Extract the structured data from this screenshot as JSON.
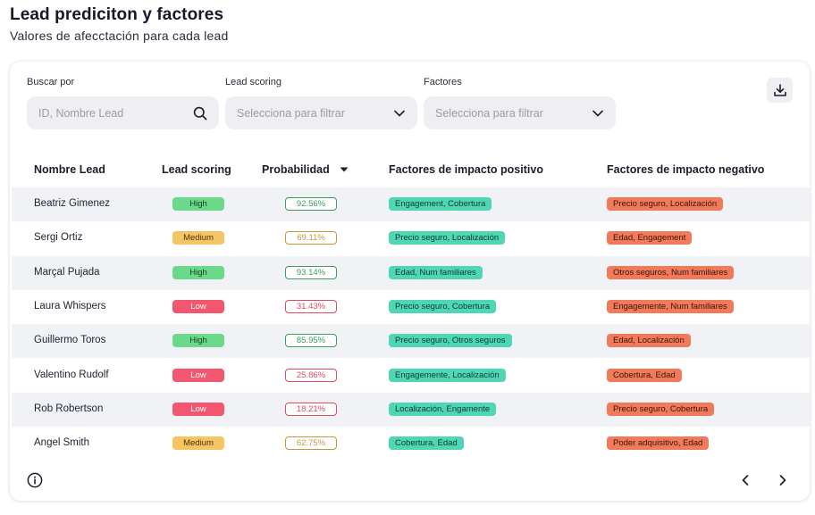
{
  "header": {
    "title": "Lead prediciton y factores",
    "subtitle": "Valores de afecctación para cada lead"
  },
  "filters": {
    "search_label": "Buscar por",
    "search_placeholder": "ID, Nombre Lead",
    "scoring_label": "Lead scoring",
    "scoring_placeholder": "Selecciona para filtrar",
    "factors_label": "Factores",
    "factors_placeholder": "Selecciona para filtrar"
  },
  "table": {
    "columns": {
      "name": "Nombre Lead",
      "scoring": "Lead scoring",
      "probability": "Probabilidad",
      "positive": "Factores de impacto positivo",
      "negative": "Factores de impacto negativo"
    },
    "rows": [
      {
        "name": "Beatriz Gimenez",
        "scoring": "High",
        "probability": "92.56%",
        "positive": "Engagement, Cobertura",
        "negative": "Precio seguro, Localización"
      },
      {
        "name": "Sergi Ortiz",
        "scoring": "Medium",
        "probability": "69.11%",
        "positive": "Precio seguro, Localización",
        "negative": "Edad, Engagement"
      },
      {
        "name": "Marçal Pujada",
        "scoring": "High",
        "probability": "93.14%",
        "positive": "Edad, Num familiares",
        "negative": "Otros seguros, Num familiares"
      },
      {
        "name": "Laura Whispers",
        "scoring": "Low",
        "probability": "31.43%",
        "positive": "Precio seguro, Cobertura",
        "negative": "Engagemente, Num familiares"
      },
      {
        "name": "Guillermo Toros",
        "scoring": "High",
        "probability": "85.95%",
        "positive": "Precio seguro, Otros seguros",
        "negative": "Edad, Localización"
      },
      {
        "name": "Valentino Rudolf",
        "scoring": "Low",
        "probability": "25.86%",
        "positive": "Engagemente, Localización",
        "negative": "Cobertura, Edad"
      },
      {
        "name": "Rob Robertson",
        "scoring": "Low",
        "probability": "18.21%",
        "positive": "Localización, Engamente",
        "negative": "Precio seguro, Cobertura"
      },
      {
        "name": "Angel Smith",
        "scoring": "Medium",
        "probability": "62.75%",
        "positive": "Cobertura, Edad",
        "negative": "Poder adquisitivo, Edad"
      }
    ]
  },
  "icons": {
    "search": "search-icon",
    "dropdown": "chevron-down-icon",
    "download": "download-icon",
    "sort": "caret-down-icon",
    "info": "info-icon",
    "prev": "chevron-left-icon",
    "next": "chevron-right-icon"
  },
  "colors": {
    "high": "#6ad98a",
    "medium": "#f5c463",
    "low": "#f3576f",
    "positive_factor": "#4fd6b4",
    "negative_factor": "#f07a5a",
    "row_alt": "#f1f2f6"
  }
}
